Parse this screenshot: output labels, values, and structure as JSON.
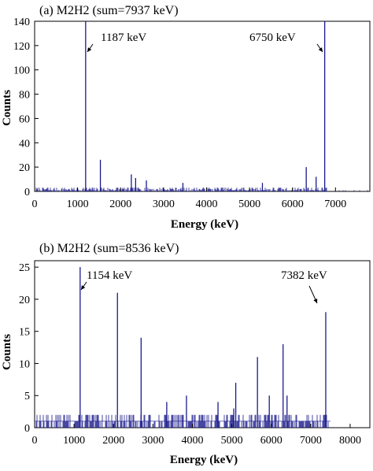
{
  "chart_data": [
    {
      "type": "histogram",
      "title": "(a) M2H2 (sum=7937 keV)",
      "xlabel": "Energy (keV)",
      "ylabel": "Counts",
      "xlim": [
        0,
        7800
      ],
      "ylim": [
        0,
        140
      ],
      "x_ticks": [
        0,
        1000,
        2000,
        3000,
        4000,
        5000,
        6000,
        7000
      ],
      "y_ticks": [
        0,
        20,
        40,
        60,
        80,
        100,
        120,
        140
      ],
      "line_color": "#1a1a8c",
      "baseline_max": 3,
      "peaks": [
        {
          "x": 1187,
          "y": 140
        },
        {
          "x": 6750,
          "y": 140
        },
        {
          "x": 1530,
          "y": 26
        },
        {
          "x": 2250,
          "y": 14
        },
        {
          "x": 2350,
          "y": 11
        },
        {
          "x": 2600,
          "y": 9
        },
        {
          "x": 3450,
          "y": 7
        },
        {
          "x": 5300,
          "y": 7
        },
        {
          "x": 6320,
          "y": 20
        },
        {
          "x": 6550,
          "y": 12
        }
      ],
      "annotations": [
        {
          "text": "1187 keV",
          "x": 1187,
          "y": 120
        },
        {
          "text": "6750 keV",
          "x": 6750,
          "y": 120
        }
      ]
    },
    {
      "type": "histogram",
      "title": "(b) M2H2 (sum=8536 keV)",
      "xlabel": "Energy (keV)",
      "ylabel": "Counts",
      "xlim": [
        0,
        8500
      ],
      "ylim": [
        0,
        26
      ],
      "x_ticks": [
        0,
        1000,
        2000,
        3000,
        4000,
        5000,
        6000,
        7000,
        8000
      ],
      "y_ticks": [
        0,
        5,
        10,
        15,
        20,
        25
      ],
      "line_color": "#1a1a8c",
      "baseline_max": 2,
      "peaks": [
        {
          "x": 1154,
          "y": 25
        },
        {
          "x": 2100,
          "y": 21
        },
        {
          "x": 2700,
          "y": 14
        },
        {
          "x": 7382,
          "y": 18
        },
        {
          "x": 5650,
          "y": 11
        },
        {
          "x": 6300,
          "y": 13
        },
        {
          "x": 3850,
          "y": 5
        },
        {
          "x": 5100,
          "y": 7
        },
        {
          "x": 5950,
          "y": 5
        },
        {
          "x": 6400,
          "y": 5
        },
        {
          "x": 3350,
          "y": 4
        },
        {
          "x": 4650,
          "y": 4
        },
        {
          "x": 5050,
          "y": 3
        }
      ],
      "annotations": [
        {
          "text": "1154 keV",
          "x": 1154,
          "y": 23
        },
        {
          "text": "7382 keV",
          "x": 7382,
          "y": 23
        }
      ]
    }
  ]
}
